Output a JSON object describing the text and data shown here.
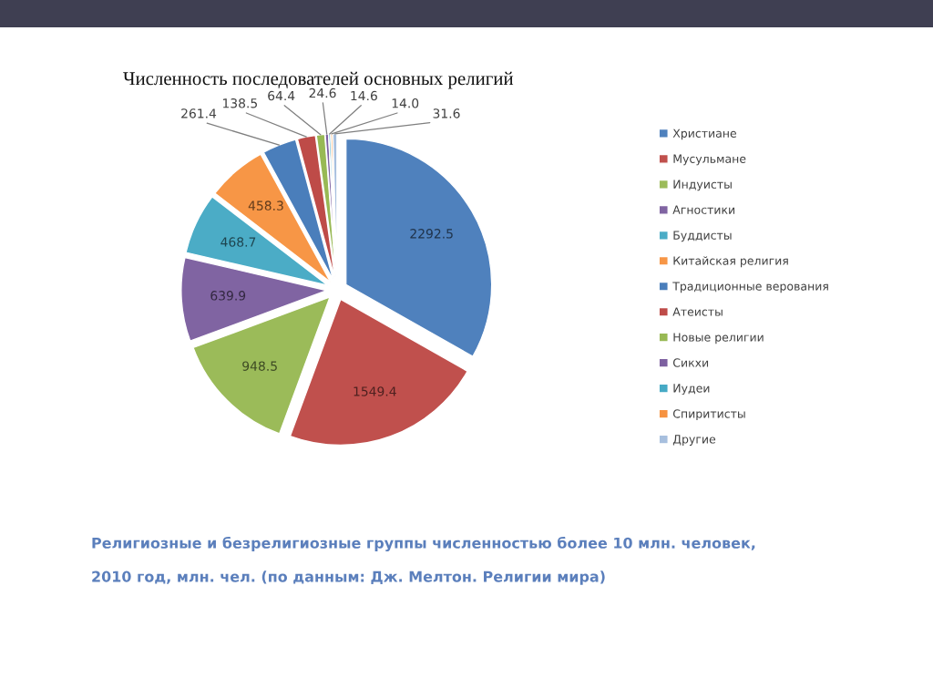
{
  "chart_data": {
    "type": "pie",
    "title": "Численность последователей основных религий",
    "categories": [
      "Христиане",
      "Мусульмане",
      "Индуисты",
      "Агностики",
      "Буддисты",
      "Китайская религия",
      "Традиционные верования",
      "Атеисты",
      "Новые религии",
      "Сикхи",
      "Иудеи",
      "Спиритисты",
      "Другие"
    ],
    "values": [
      2292.5,
      1549.4,
      948.5,
      639.9,
      468.7,
      458.3,
      261.4,
      138.5,
      64.4,
      24.6,
      14.6,
      14.0,
      31.6
    ],
    "value_labels": [
      "2292.5",
      "1549.4",
      "948.5",
      "639.9",
      "468.7",
      "458.3",
      "261.4",
      "138.5",
      "64.4",
      "24.6",
      "14.6",
      "14.0",
      "31.6"
    ],
    "colors": [
      "#4f81bd",
      "#c0504d",
      "#9bbb59",
      "#8064a2",
      "#4bacc6",
      "#f79646",
      "#4a7ebb",
      "#be4b48",
      "#98b954",
      "#7d60a0",
      "#46aac5",
      "#f69240",
      "#a7bfde"
    ],
    "legend": "right",
    "annotations": [
      "Религиозные и безрелигиозные группы численностью более 10 млн. человек,",
      "2010 год, млн. чел. (по данным: Дж. Мелтон. Религии мира)"
    ]
  }
}
